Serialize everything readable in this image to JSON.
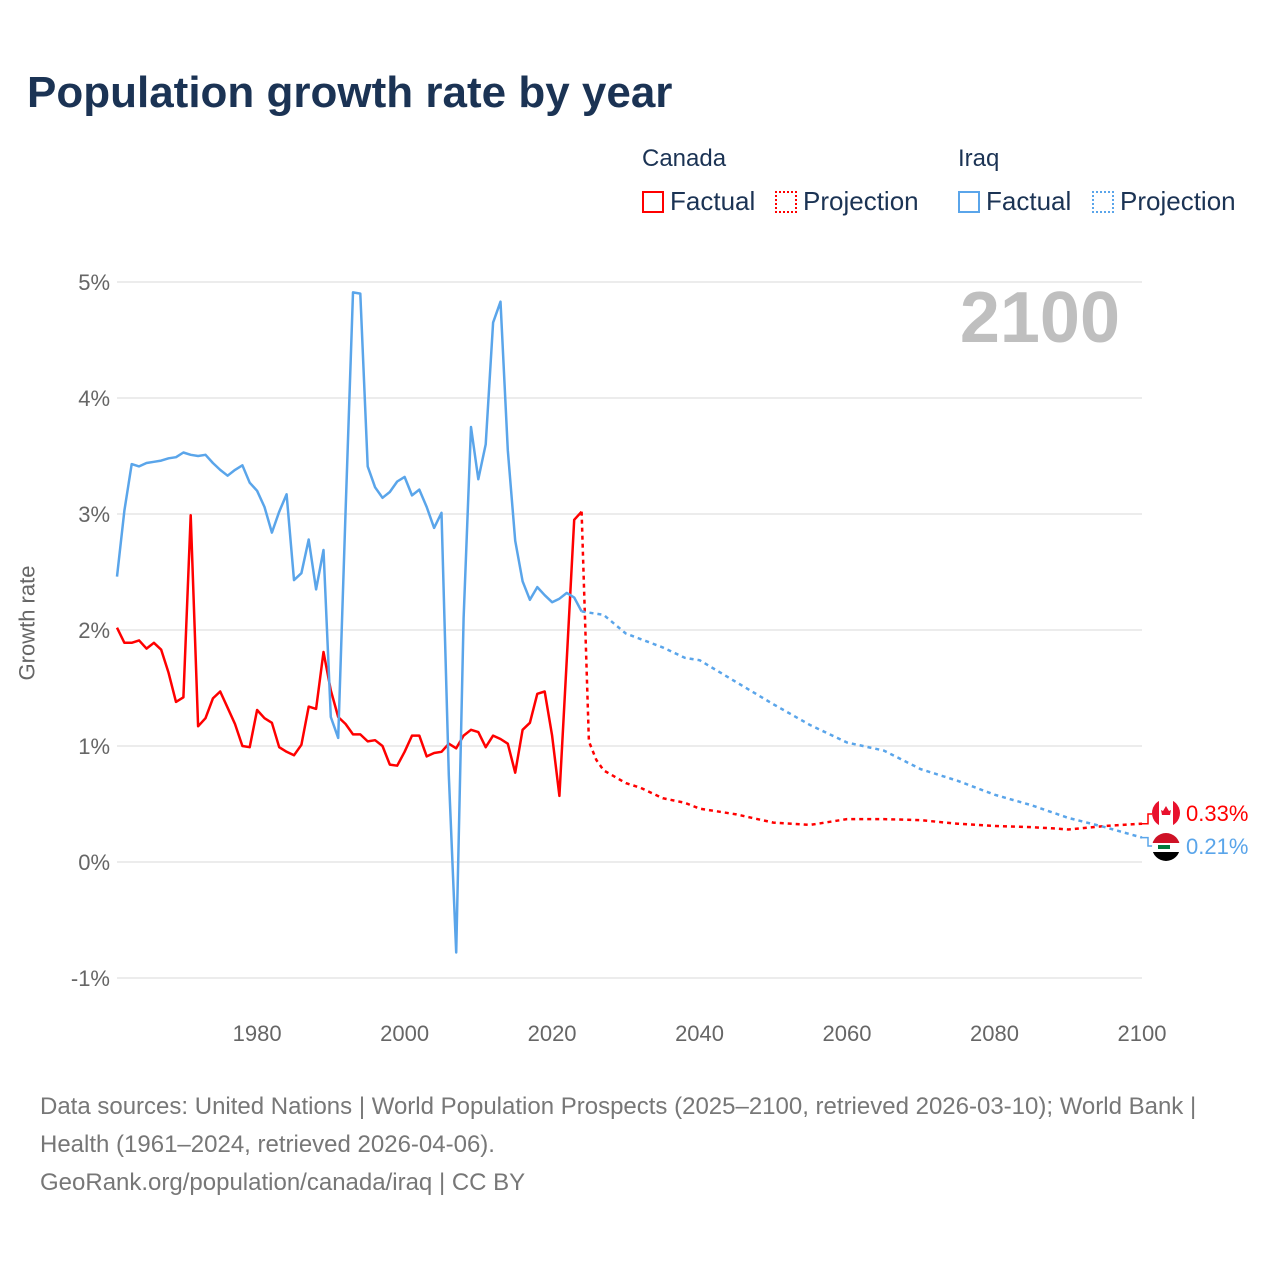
{
  "title": "Population growth rate by year",
  "legend": {
    "canada": "Canada",
    "iraq": "Iraq",
    "factual": "Factual",
    "projection": "Projection"
  },
  "source_lines": [
    "Data sources: United Nations | World Population Prospects (2025–2100, retrieved 2026-03-10); World Bank | Health (1961–2024, retrieved 2026-04-06).",
    "GeoRank.org/population/canada/iraq | CC BY"
  ],
  "colors": {
    "canada": "#ff0000",
    "iraq": "#5aa5ea",
    "grid": "#e6e6e6",
    "year": "#bfbfbf"
  },
  "chart_data": {
    "type": "line",
    "title": "Population growth rate by year",
    "ylabel": "Growth rate",
    "xlabel": "",
    "year_label": "2100",
    "xlim": [
      1961,
      2100
    ],
    "ylim": [
      -1.1,
      5.0
    ],
    "xticks": [
      {
        "v": 1980,
        "label": "1980"
      },
      {
        "v": 2000,
        "label": "2000"
      },
      {
        "v": 2020,
        "label": "2020"
      },
      {
        "v": 2040,
        "label": "2040"
      },
      {
        "v": 2060,
        "label": "2060"
      },
      {
        "v": 2080,
        "label": "2080"
      },
      {
        "v": 2100,
        "label": "2100"
      }
    ],
    "yticks": [
      {
        "v": -1,
        "label": "-1%"
      },
      {
        "v": 0,
        "label": "0%"
      },
      {
        "v": 1,
        "label": "1%"
      },
      {
        "v": 2,
        "label": "2%"
      },
      {
        "v": 3,
        "label": "3%"
      },
      {
        "v": 4,
        "label": "4%"
      },
      {
        "v": 5,
        "label": "5%"
      }
    ],
    "series": [
      {
        "name": "Canada Factual",
        "country": "canada",
        "style": "solid",
        "start": 1961,
        "values": [
          2.02,
          1.89,
          1.89,
          1.91,
          1.84,
          1.89,
          1.83,
          1.63,
          1.38,
          1.42,
          2.99,
          1.17,
          1.24,
          1.41,
          1.47,
          1.33,
          1.19,
          1.0,
          0.99,
          1.31,
          1.24,
          1.2,
          0.99,
          0.95,
          0.92,
          1.01,
          1.34,
          1.32,
          1.81,
          1.48,
          1.25,
          1.19,
          1.1,
          1.1,
          1.04,
          1.05,
          1.0,
          0.84,
          0.83,
          0.95,
          1.09,
          1.09,
          0.91,
          0.94,
          0.95,
          1.02,
          0.98,
          1.09,
          1.14,
          1.12,
          0.99,
          1.09,
          1.06,
          1.02,
          0.77,
          1.14,
          1.2,
          1.45,
          1.47,
          1.09,
          0.57,
          1.75,
          2.95,
          3.02
        ]
      },
      {
        "name": "Canada Projection",
        "country": "canada",
        "style": "dotted",
        "x": [
          2024,
          2025,
          2026,
          2027,
          2030,
          2032,
          2035,
          2038,
          2040,
          2045,
          2050,
          2055,
          2060,
          2065,
          2070,
          2075,
          2080,
          2085,
          2088,
          2090,
          2095,
          2100
        ],
        "values": [
          3.02,
          1.04,
          0.88,
          0.79,
          0.68,
          0.64,
          0.55,
          0.51,
          0.46,
          0.41,
          0.34,
          0.32,
          0.37,
          0.37,
          0.36,
          0.33,
          0.31,
          0.3,
          0.29,
          0.28,
          0.31,
          0.33
        ]
      },
      {
        "name": "Iraq Factual",
        "country": "iraq",
        "style": "solid",
        "start": 1961,
        "values": [
          2.46,
          3.03,
          3.43,
          3.41,
          3.44,
          3.45,
          3.46,
          3.48,
          3.49,
          3.53,
          3.51,
          3.5,
          3.51,
          3.44,
          3.38,
          3.33,
          3.38,
          3.42,
          3.27,
          3.2,
          3.06,
          2.84,
          3.02,
          3.17,
          2.43,
          2.49,
          2.78,
          2.35,
          2.69,
          1.25,
          1.07,
          3.03,
          4.91,
          4.9,
          3.41,
          3.23,
          3.14,
          3.19,
          3.28,
          3.32,
          3.16,
          3.21,
          3.06,
          2.88,
          3.01,
          0.75,
          -0.78,
          2.1,
          3.75,
          3.3,
          3.6,
          4.65,
          4.83,
          3.55,
          2.77,
          2.42,
          2.26,
          2.37,
          2.3,
          2.24,
          2.27,
          2.32,
          2.28,
          2.16
        ]
      },
      {
        "name": "Iraq Projection",
        "country": "iraq",
        "style": "dotted",
        "x": [
          2024,
          2025,
          2027,
          2030,
          2035,
          2038,
          2040,
          2045,
          2050,
          2055,
          2060,
          2065,
          2070,
          2075,
          2080,
          2085,
          2090,
          2095,
          2100
        ],
        "values": [
          2.16,
          2.15,
          2.13,
          1.97,
          1.85,
          1.76,
          1.74,
          1.55,
          1.36,
          1.18,
          1.03,
          0.96,
          0.8,
          0.7,
          0.58,
          0.49,
          0.38,
          0.3,
          0.21
        ]
      }
    ],
    "end_labels": {
      "canada": "0.33%",
      "iraq": "0.21%"
    }
  }
}
